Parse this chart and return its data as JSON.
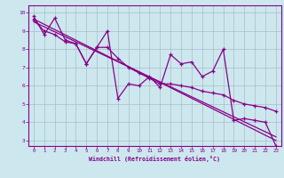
{
  "xlabel": "Windchill (Refroidissement éolien,°C)",
  "xlim": [
    -0.5,
    23.5
  ],
  "ylim": [
    2.7,
    10.4
  ],
  "xticks": [
    0,
    1,
    2,
    3,
    4,
    5,
    6,
    7,
    8,
    9,
    10,
    11,
    12,
    13,
    14,
    15,
    16,
    17,
    18,
    19,
    20,
    21,
    22,
    23
  ],
  "yticks": [
    3,
    4,
    5,
    6,
    7,
    8,
    9,
    10
  ],
  "bg_color": "#cce8ee",
  "grid_color": "#aabbc8",
  "line_color": "#880088",
  "line1_y": [
    9.8,
    8.8,
    9.7,
    8.5,
    8.3,
    7.2,
    8.1,
    9.0,
    5.3,
    6.1,
    6.0,
    6.5,
    5.9,
    7.7,
    7.2,
    7.3,
    6.5,
    6.8,
    8.0,
    4.1,
    4.2,
    4.1,
    4.0,
    2.7
  ],
  "line2_y": [
    9.6,
    9.0,
    8.8,
    8.4,
    8.3,
    7.2,
    8.1,
    8.1,
    7.5,
    7.0,
    6.7,
    6.4,
    6.1,
    6.1,
    6.0,
    5.9,
    5.7,
    5.6,
    5.5,
    5.2,
    5.0,
    4.9,
    4.8,
    4.6
  ],
  "line3_x": [
    0,
    23
  ],
  "line3_y": [
    9.65,
    3.0
  ],
  "line4_x": [
    0,
    23
  ],
  "line4_y": [
    9.5,
    3.2
  ]
}
